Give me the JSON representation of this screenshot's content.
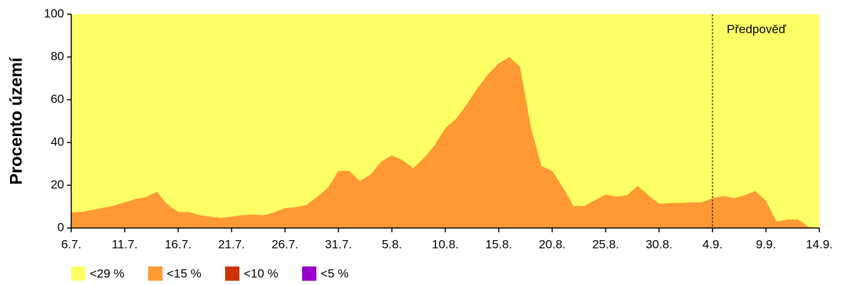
{
  "chart_data": {
    "type": "area",
    "y_label": "Procento území",
    "categories": [
      "6.7.",
      null,
      null,
      null,
      null,
      "11.7.",
      null,
      null,
      null,
      null,
      "16.7.",
      null,
      null,
      null,
      null,
      "21.7.",
      null,
      null,
      null,
      null,
      "26.7.",
      null,
      null,
      null,
      null,
      "31.7.",
      null,
      null,
      null,
      null,
      "5.8.",
      null,
      null,
      null,
      null,
      "10.8.",
      null,
      null,
      null,
      null,
      "15.8.",
      null,
      null,
      null,
      null,
      "20.8.",
      null,
      null,
      null,
      null,
      "25.8.",
      null,
      null,
      null,
      null,
      "30.8.",
      null,
      null,
      null,
      null,
      "4.9.",
      null,
      null,
      null,
      null,
      "9.9.",
      null,
      null,
      null,
      null,
      "14.9."
    ],
    "series": [
      {
        "name": "<29 %",
        "color": "#ffff66",
        "values": [
          100,
          100,
          100,
          100,
          100,
          100,
          100,
          100,
          100,
          100,
          100,
          100,
          100,
          100,
          100,
          100,
          100,
          100,
          100,
          100,
          100,
          100,
          100,
          100,
          100,
          100,
          100,
          100,
          100,
          100,
          100,
          100,
          100,
          100,
          100,
          100,
          100,
          100,
          100,
          100,
          100,
          100,
          100,
          100,
          100,
          100,
          100,
          100,
          100,
          100,
          100,
          100,
          100,
          100,
          100,
          100,
          100,
          100,
          100,
          100,
          100,
          100,
          100,
          100,
          100,
          100,
          100,
          100,
          100,
          100,
          100
        ]
      },
      {
        "name": "<15 %",
        "color": "#ff9933",
        "values": [
          7.3,
          7.5,
          8.5,
          9.5,
          10.5,
          12,
          13.5,
          14.5,
          17,
          11,
          7.5,
          7.5,
          6,
          5.3,
          4.7,
          5.3,
          6,
          6.3,
          6,
          7.3,
          9.3,
          9.7,
          10.7,
          14.5,
          18.7,
          26.7,
          26.7,
          22,
          25,
          31,
          34,
          31.7,
          28,
          32.7,
          38.7,
          46.7,
          51,
          57.7,
          65.3,
          72,
          77,
          80,
          75.3,
          47.3,
          29,
          26.7,
          19,
          10.3,
          10.3,
          13,
          15.7,
          14.7,
          15.3,
          19.7,
          15.3,
          11.3,
          11.7,
          11.7,
          12,
          12,
          14,
          15,
          14,
          15.3,
          17.3,
          12.7,
          3,
          4,
          4,
          0.5,
          0
        ]
      },
      {
        "name": "<10 %",
        "color": "#cc3300",
        "values": [
          0,
          0,
          0,
          0,
          0,
          0,
          0,
          0,
          0,
          0,
          0,
          0,
          0,
          0,
          0,
          0,
          0,
          0,
          0,
          0,
          0,
          0,
          0,
          0,
          0,
          0,
          0,
          0,
          0,
          0,
          0,
          0,
          0,
          0,
          0,
          0,
          0,
          0,
          0,
          0,
          0,
          0,
          0,
          0,
          0,
          0,
          0,
          0,
          0,
          0,
          0,
          0,
          0,
          0,
          0,
          0,
          0,
          0,
          0,
          0,
          0,
          0,
          0,
          0,
          0,
          0,
          0,
          0,
          0,
          0,
          0
        ]
      },
      {
        "name": "<5 %",
        "color": "#9900cc",
        "values": [
          0,
          0,
          0,
          0,
          0,
          0,
          0,
          0,
          0,
          0,
          0,
          0,
          0,
          0,
          0,
          0,
          0,
          0,
          0,
          0,
          0,
          0,
          0,
          0,
          0,
          0,
          0,
          0,
          0,
          0,
          0,
          0,
          0,
          0,
          0,
          0,
          0,
          0,
          0,
          0,
          0,
          0,
          0,
          0,
          0,
          0,
          0,
          0,
          0,
          0,
          0,
          0,
          0,
          0,
          0,
          0,
          0,
          0,
          0,
          0,
          0,
          0,
          0,
          0,
          0,
          0,
          0,
          0,
          0,
          0,
          0
        ]
      }
    ],
    "annotation": {
      "text": "Předpověď",
      "x": "4.9."
    },
    "ylim": [
      0,
      100
    ],
    "yticks": [
      0,
      20,
      40,
      60,
      80,
      100
    ],
    "grid": false
  }
}
